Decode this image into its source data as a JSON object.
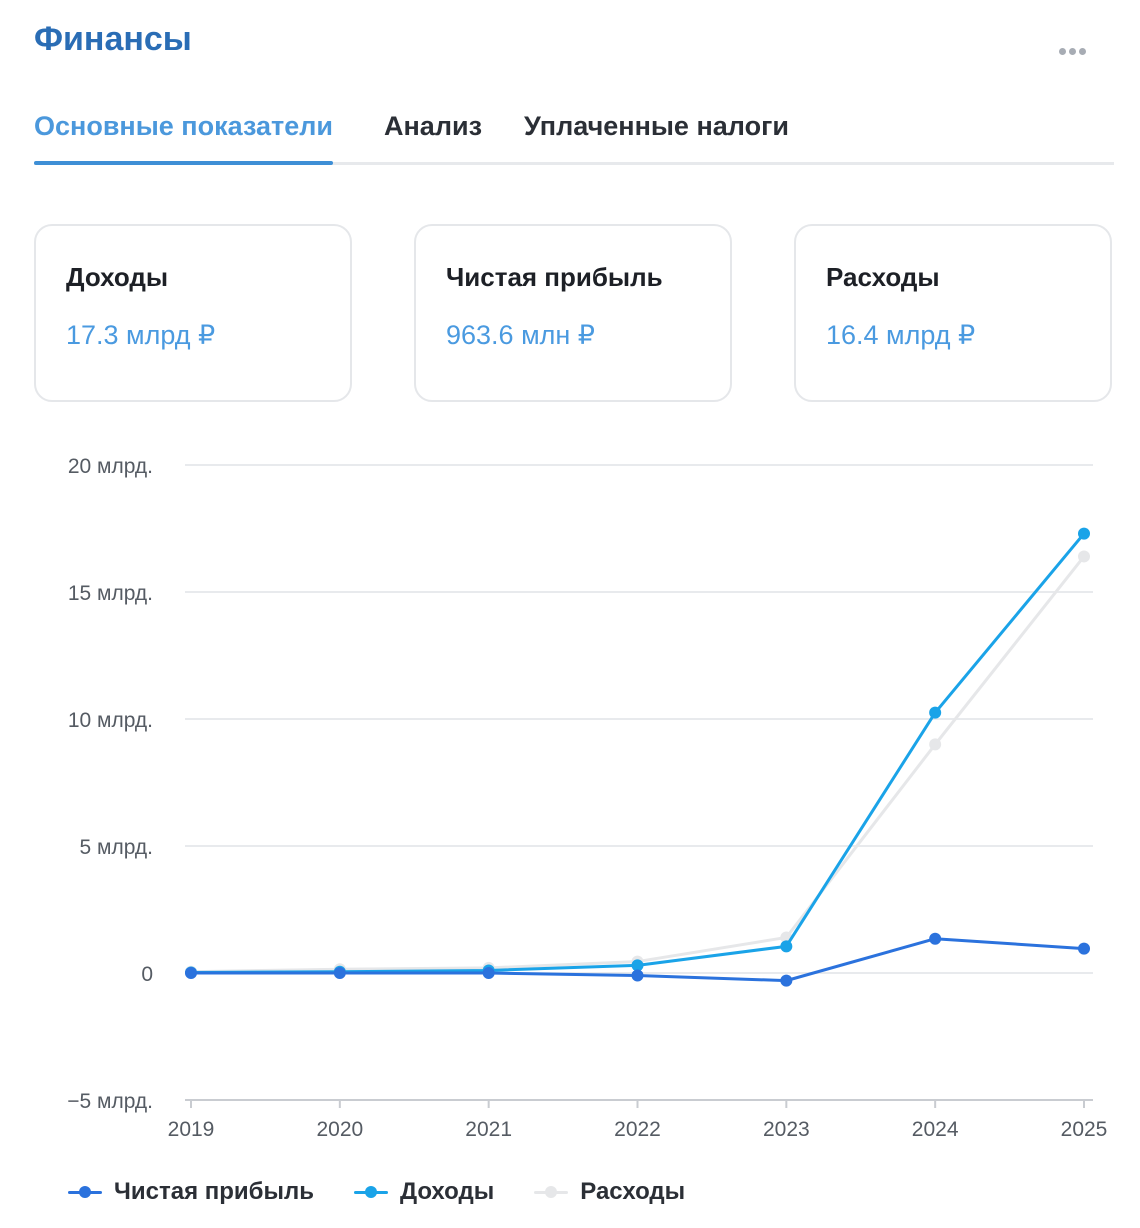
{
  "header": {
    "title": "Финансы",
    "more_icon": "more-horizontal-icon"
  },
  "tabs": [
    {
      "label": "Основные показатели",
      "active": true
    },
    {
      "label": "Анализ",
      "active": false
    },
    {
      "label": "Уплаченные налоги",
      "active": false
    }
  ],
  "cards": [
    {
      "label": "Доходы",
      "value": "17.3 млрд ₽"
    },
    {
      "label": "Чистая прибыль",
      "value": "963.6 млн ₽"
    },
    {
      "label": "Расходы",
      "value": "16.4 млрд ₽"
    }
  ],
  "colors": {
    "accent": "#4a9ae0",
    "title": "#2a6db5",
    "profit": "#2b72dd",
    "income": "#1aa3e8",
    "expenses": "#e6e7e9"
  },
  "chart_data": {
    "type": "line",
    "x": [
      "2019",
      "2020",
      "2021",
      "2022",
      "2023",
      "2024",
      "2025"
    ],
    "y_ticks": [
      {
        "value": 20,
        "label": "20 млрд."
      },
      {
        "value": 15,
        "label": "15 млрд."
      },
      {
        "value": 10,
        "label": "10 млрд."
      },
      {
        "value": 5,
        "label": "5 млрд."
      },
      {
        "value": 0,
        "label": "0"
      },
      {
        "value": -5,
        "label": "−5 млрд."
      }
    ],
    "ylim": [
      -5,
      20
    ],
    "grid": true,
    "legend_position": "bottom-left",
    "series": [
      {
        "name": "Расходы",
        "color": "#e6e7e9",
        "values": [
          0.05,
          0.15,
          0.2,
          0.45,
          1.4,
          9.0,
          16.4
        ]
      },
      {
        "name": "Доходы",
        "color": "#1aa3e8",
        "values": [
          0.02,
          0.05,
          0.1,
          0.3,
          1.05,
          10.25,
          17.3
        ]
      },
      {
        "name": "Чистая прибыль",
        "color": "#2b72dd",
        "values": [
          0.0,
          0.0,
          0.0,
          -0.1,
          -0.3,
          1.35,
          0.96
        ]
      }
    ]
  },
  "legend": [
    {
      "label": "Чистая прибыль",
      "color": "#2b72dd"
    },
    {
      "label": "Доходы",
      "color": "#1aa3e8"
    },
    {
      "label": "Расходы",
      "color": "#e6e7e9"
    }
  ]
}
